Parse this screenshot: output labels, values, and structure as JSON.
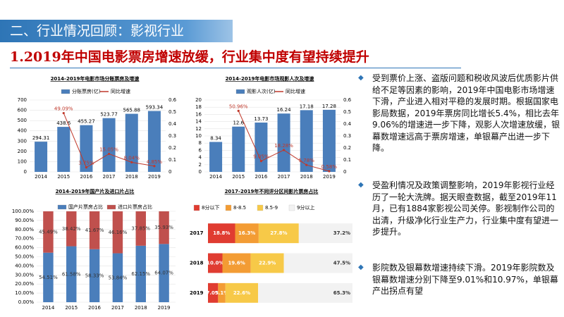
{
  "header": {
    "section": "二、行业情况回顾：影视行业",
    "title": "1.2019年中国电影票房增速放缓，行业集中度有望持续提升"
  },
  "bullets": [
    "受到票价上涨、盗版问题和税收风波后优质影片供给不足等因素的影响，2019年中国电影市场增速下滑，产业进入相对平稳的发展时期。根据国家电影局数据，2019年票房同比增长5.4%，相比去年9.06%的增速进一步下降，观影人次增速放缓，银幕数增速远高于票房增速，单银幕产出进一步下降。",
    "受盈利情况及政策调整影响，2019年影视行业经历了一轮大洗牌。据天眼查数据，截至2019年11月，已有1884家影视公司关停。影视制作公司的出清，升级净化行业生产力，行业集中度有望进一步提升。",
    "影院数及银幕数增速持续下滑。2019年影院数及银幕数增速分别下降至9.01%和10.97%，单银幕产出拐点有望"
  ],
  "chart_data": [
    {
      "type": "combo",
      "title": "2014-2019年电影市场分账票房及增速",
      "categories": [
        "2014",
        "2015",
        "2016",
        "2017",
        "2018",
        "2019"
      ],
      "series": [
        {
          "name": "分账票房(亿)",
          "color": "#4a7ebb",
          "values": [
            294.31,
            438.6,
            455.27,
            523.77,
            565.88,
            593.34
          ]
        },
        {
          "name": "同比增速",
          "color": "#c0392b",
          "axis": "y2",
          "values": [
            null,
            0.4909,
            0.0375,
            0.1505,
            0.0804,
            0.0485
          ],
          "value_labels": [
            null,
            "49.09%",
            "3.75%",
            "15.05%",
            "8.04%",
            "4.85%"
          ]
        }
      ],
      "ylim": [
        0,
        700
      ],
      "yticks": [
        0,
        100,
        200,
        300,
        400,
        500,
        600,
        700
      ],
      "y2lim": [
        0,
        0.6
      ],
      "y2ticks": [
        0,
        0.1,
        0.2,
        0.3,
        0.4,
        0.5,
        0.6
      ],
      "grid": true
    },
    {
      "type": "combo",
      "title": "2014-2019年电影市场观影人次及增速",
      "categories": [
        "2014",
        "2015",
        "2016",
        "2017",
        "2018",
        "2019"
      ],
      "series": [
        {
          "name": "观影人次(亿)",
          "color": "#4a7ebb",
          "values": [
            8.34,
            12.6,
            13.73,
            16.24,
            17.18,
            17.28
          ]
        },
        {
          "name": "同比增速",
          "color": "#c0392b",
          "axis": "y2",
          "values": [
            null,
            0.5096,
            0.0905,
            0.1828,
            0.0578,
            0.0058
          ],
          "value_labels": [
            null,
            "50.96%",
            "9.05%",
            "18.28%",
            "5.78%",
            "0.58%"
          ]
        }
      ],
      "ylim": [
        0,
        20
      ],
      "yticks": [
        0,
        2,
        4,
        6,
        8,
        10,
        12,
        14,
        16,
        18,
        20
      ],
      "y2lim": [
        0,
        0.6
      ],
      "y2ticks": [
        0,
        0.1,
        0.2,
        0.3,
        0.4,
        0.5,
        0.6
      ],
      "grid": true
    },
    {
      "type": "stacked_bar",
      "title": "2014-2019年国产片及进口片占比",
      "categories": [
        "2014",
        "2015",
        "2016",
        "2017",
        "2018",
        "2019"
      ],
      "series": [
        {
          "name": "国产片票房占比",
          "color": "#4a7ebb",
          "values": [
            54.51,
            61.58,
            58.33,
            53.84,
            62.15,
            64.07
          ],
          "value_labels": [
            "54.51%",
            "61.58%",
            "58.33%",
            "53.84%",
            "62.15%",
            "64.07%"
          ]
        },
        {
          "name": "进口片票房占比",
          "color": "#c0504d",
          "values": [
            45.49,
            38.42,
            41.67,
            46.16,
            37.85,
            35.93
          ],
          "value_labels": [
            "45.49%",
            "38.42%",
            "41.67%",
            "46.16%",
            "37.85%",
            "35.93%"
          ]
        }
      ],
      "ylim": [
        0,
        100
      ],
      "yticks": [
        {
          "value": 0,
          "label": "0.00%"
        },
        {
          "value": 10,
          "label": "10.00%"
        },
        {
          "value": 20,
          "label": "20.00%"
        },
        {
          "value": 30,
          "label": "30.00%"
        },
        {
          "value": 40,
          "label": "40.00%"
        },
        {
          "value": 50,
          "label": "50.00%"
        },
        {
          "value": 60,
          "label": "60.00%"
        },
        {
          "value": 70,
          "label": "70.00%"
        },
        {
          "value": 80,
          "label": "80.00%"
        },
        {
          "value": 90,
          "label": "90.00%"
        },
        {
          "value": 100,
          "label": "100.00%"
        }
      ],
      "grid": true
    },
    {
      "type": "stacked_barh",
      "title": "2017-2019年不同评分区间影片票房占比",
      "categories": [
        "2017",
        "2018",
        "2019"
      ],
      "series": [
        {
          "name": "8分以下",
          "color": "#e03c31",
          "values": [
            18.8,
            10.0,
            7.0
          ],
          "value_labels": [
            "18.8%",
            "10.0%",
            "7.0%"
          ]
        },
        {
          "name": "8-8.5",
          "color": "#f39c34",
          "values": [
            16.3,
            19.6,
            5.1
          ],
          "value_labels": [
            "16.3%",
            "19.6%",
            "5.1%"
          ]
        },
        {
          "name": "8.5-9",
          "color": "#f7c948",
          "values": [
            27.8,
            22.9,
            22.6
          ],
          "value_labels": [
            "27.8%",
            "22.9%",
            "22.6%"
          ]
        },
        {
          "name": "9分以上",
          "color": "#f2f2f2",
          "values": [
            37.2,
            47.5,
            65.3
          ],
          "value_labels": [
            "37.2%",
            "47.5%",
            "65.3%"
          ]
        }
      ]
    }
  ]
}
